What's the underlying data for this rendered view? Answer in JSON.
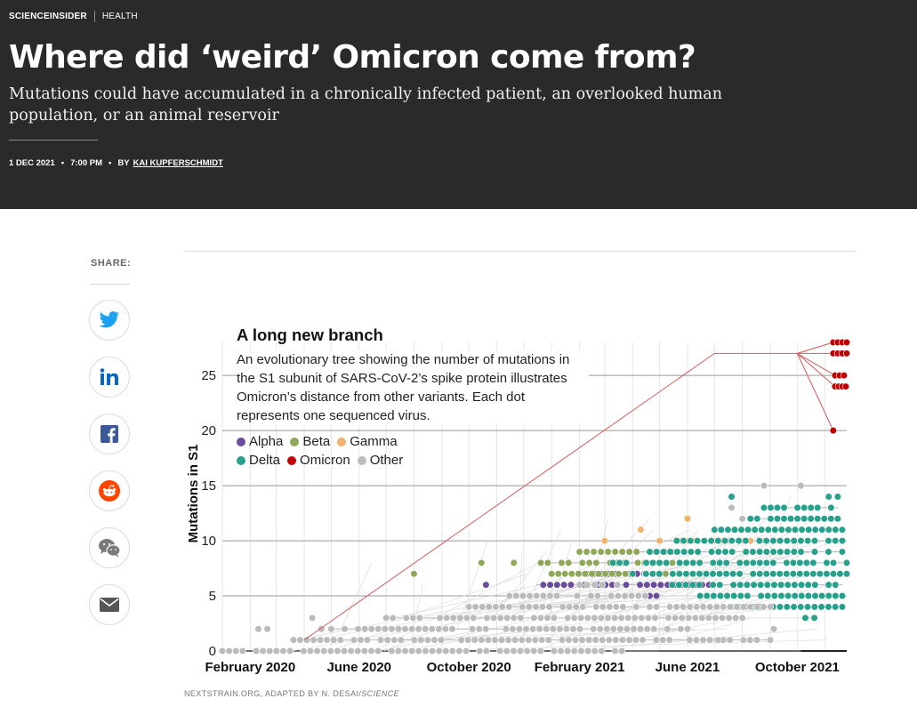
{
  "header": {
    "section": "SCIENCEINSIDER",
    "category": "HEALTH",
    "title": "Where did ‘weird’ Omicron come from?",
    "dek": "Mutations could have accumulated in a chronically infected patient, an overlooked human population, or an animal reservoir",
    "date": "1 DEC 2021",
    "time": "7:00 PM",
    "by": "BY",
    "author": "KAI KUPFERSCHMIDT"
  },
  "share": {
    "label": "SHARE:",
    "buttons": [
      {
        "name": "twitter",
        "icon": "twitter-icon",
        "color": "#1da1f2"
      },
      {
        "name": "linkedin",
        "icon": "linkedin-icon",
        "color": "#0a66c2"
      },
      {
        "name": "facebook",
        "icon": "facebook-icon",
        "color": "#3b5998"
      },
      {
        "name": "reddit",
        "icon": "reddit-icon",
        "color": "#ff4500"
      },
      {
        "name": "wechat",
        "icon": "wechat-icon",
        "color": "#7a7a7a"
      },
      {
        "name": "email",
        "icon": "email-icon",
        "color": "#555555"
      }
    ]
  },
  "credit": {
    "source": "NEXTSTRAIN.ORG, ADAPTED BY N. DESAI/",
    "publication": "SCIENCE"
  },
  "chart_data": {
    "type": "scatter",
    "title": "A long new branch",
    "subtitle": "An evolutionary tree showing the number of mutations in the S1 subunit of SARS-CoV-2’s spike protein illustrates Omicron’s distance from other variants. Each dot represents one sequenced virus.",
    "ylabel": "Mutations in S1",
    "xlabel": "",
    "ylim": [
      0,
      28
    ],
    "yticks": [
      0,
      5,
      10,
      15,
      20,
      25
    ],
    "xticks": [
      {
        "label": "February 2020",
        "date": "2020-02-01"
      },
      {
        "label": "June 2020",
        "date": "2020-06-01"
      },
      {
        "label": "October 2020",
        "date": "2020-10-01"
      },
      {
        "label": "February 2021",
        "date": "2021-02-01"
      },
      {
        "label": "June 2021",
        "date": "2021-06-01"
      },
      {
        "label": "October 2021",
        "date": "2021-10-01"
      }
    ],
    "xlim": [
      "2020-01-01",
      "2021-11-25"
    ],
    "grid": true,
    "legend_position": "top-left",
    "series": [
      {
        "name": "Alpha",
        "color": "#6a4c9c",
        "ranges": [
          {
            "y": 6,
            "from": "2020-12-15",
            "to": "2021-06-25"
          },
          {
            "y": 7,
            "from": "2021-02-01",
            "to": "2021-04-30"
          },
          {
            "y": 5,
            "from": "2021-04-20",
            "to": "2021-05-05"
          }
        ],
        "points": [
          {
            "date": "2020-10-20",
            "y": 6
          }
        ]
      },
      {
        "name": "Beta",
        "color": "#8fa858",
        "ranges": [
          {
            "y": 8,
            "from": "2020-12-20",
            "to": "2021-06-15"
          },
          {
            "y": 7,
            "from": "2021-01-01",
            "to": "2021-05-30"
          },
          {
            "y": 9,
            "from": "2021-02-01",
            "to": "2021-05-15"
          }
        ],
        "points": [
          {
            "date": "2020-10-15",
            "y": 8
          },
          {
            "date": "2020-11-20",
            "y": 8
          },
          {
            "date": "2020-08-01",
            "y": 7
          }
        ]
      },
      {
        "name": "Gamma",
        "color": "#f2b36c",
        "ranges": [
          {
            "y": 10,
            "from": "2021-05-01",
            "to": "2021-09-10"
          }
        ],
        "points": [
          {
            "date": "2021-03-01",
            "y": 10
          },
          {
            "date": "2021-06-01",
            "y": 12
          },
          {
            "date": "2021-04-10",
            "y": 11
          }
        ]
      },
      {
        "name": "Delta",
        "color": "#27a08c",
        "ranges": [
          {
            "y": 3,
            "from": "2021-10-10",
            "to": "2021-10-20"
          },
          {
            "y": 4,
            "from": "2021-07-20",
            "to": "2021-11-20"
          },
          {
            "y": 5,
            "from": "2021-06-15",
            "to": "2021-11-20"
          },
          {
            "y": 6,
            "from": "2021-05-15",
            "to": "2021-11-20"
          },
          {
            "y": 7,
            "from": "2021-04-01",
            "to": "2021-11-25"
          },
          {
            "y": 8,
            "from": "2021-03-10",
            "to": "2021-11-25"
          },
          {
            "y": 9,
            "from": "2021-04-20",
            "to": "2021-11-20"
          },
          {
            "y": 10,
            "from": "2021-05-20",
            "to": "2021-11-20"
          },
          {
            "y": 11,
            "from": "2021-07-01",
            "to": "2021-11-20"
          },
          {
            "y": 12,
            "from": "2021-08-10",
            "to": "2021-11-15"
          },
          {
            "y": 13,
            "from": "2021-08-25",
            "to": "2021-11-15"
          }
        ],
        "points": [
          {
            "date": "2021-07-20",
            "y": 14
          },
          {
            "date": "2021-11-05",
            "y": 14
          },
          {
            "date": "2021-11-15",
            "y": 14
          }
        ]
      },
      {
        "name": "Omicron",
        "color": "#c00000",
        "ranges": [
          {
            "y": 28,
            "from": "2021-11-10",
            "to": "2021-11-25"
          },
          {
            "y": 27,
            "from": "2021-11-10",
            "to": "2021-11-25"
          },
          {
            "y": 25,
            "from": "2021-11-12",
            "to": "2021-11-22"
          },
          {
            "y": 24,
            "from": "2021-11-12",
            "to": "2021-11-24"
          }
        ],
        "points": [
          {
            "date": "2021-11-10",
            "y": 20
          }
        ]
      },
      {
        "name": "Other",
        "color": "#bbbbbb",
        "ranges": [
          {
            "y": 0,
            "from": "2020-01-01",
            "to": "2021-03-20"
          },
          {
            "y": 1,
            "from": "2020-03-20",
            "to": "2021-09-01"
          },
          {
            "y": 2,
            "from": "2020-05-01",
            "to": "2021-06-01"
          },
          {
            "y": 3,
            "from": "2020-07-01",
            "to": "2021-08-01"
          },
          {
            "y": 4,
            "from": "2020-10-01",
            "to": "2021-09-01"
          },
          {
            "y": 5,
            "from": "2020-11-15",
            "to": "2021-04-15"
          },
          {
            "y": 6,
            "from": "2021-02-01",
            "to": "2021-03-15"
          }
        ],
        "points": [
          {
            "date": "2020-02-10",
            "y": 2
          },
          {
            "date": "2020-02-20",
            "y": 2
          },
          {
            "date": "2020-04-10",
            "y": 3
          },
          {
            "date": "2020-04-20",
            "y": 2
          },
          {
            "date": "2021-07-20",
            "y": 13
          },
          {
            "date": "2021-08-25",
            "y": 15
          },
          {
            "date": "2021-10-05",
            "y": 15
          },
          {
            "date": "2021-08-01",
            "y": 12
          },
          {
            "date": "2021-09-05",
            "y": 2
          },
          {
            "date": "2021-07-05",
            "y": 1
          }
        ]
      }
    ]
  }
}
